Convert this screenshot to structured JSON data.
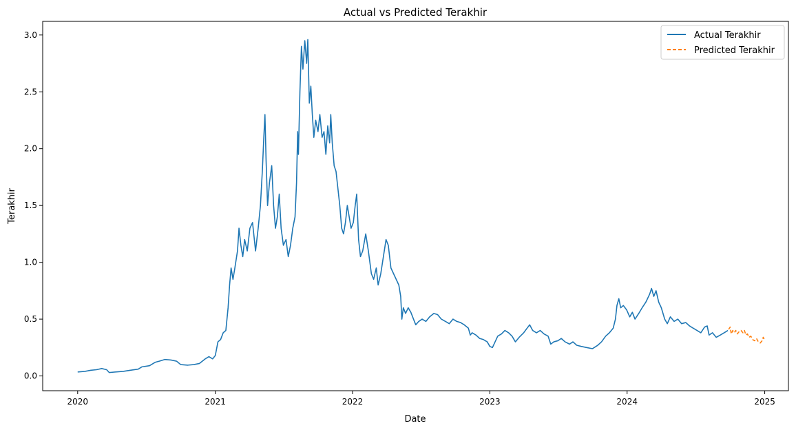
{
  "chart_data": {
    "type": "line",
    "title": "Actual vs Predicted Terakhir",
    "xlabel": "Date",
    "ylabel": "Terakhir",
    "xlim": [
      "2019-09-30",
      "2025-03-05"
    ],
    "ylim": [
      -0.13,
      3.12
    ],
    "x_ticks": [
      "2020",
      "2021",
      "2022",
      "2023",
      "2024",
      "2025"
    ],
    "y_ticks": [
      "0.0",
      "0.5",
      "1.0",
      "1.5",
      "2.0",
      "2.5",
      "3.0"
    ],
    "legend_position": "top-right",
    "grid": false,
    "series": [
      {
        "name": "Actual Terakhir",
        "color": "#1f77b4",
        "style": "solid",
        "points": [
          [
            "2020-01-01",
            0.035
          ],
          [
            "2020-01-20",
            0.04
          ],
          [
            "2020-02-05",
            0.05
          ],
          [
            "2020-02-20",
            0.055
          ],
          [
            "2020-03-05",
            0.065
          ],
          [
            "2020-03-18",
            0.055
          ],
          [
            "2020-03-25",
            0.03
          ],
          [
            "2020-04-10",
            0.035
          ],
          [
            "2020-05-01",
            0.04
          ],
          [
            "2020-05-20",
            0.05
          ],
          [
            "2020-06-10",
            0.06
          ],
          [
            "2020-06-20",
            0.08
          ],
          [
            "2020-07-10",
            0.09
          ],
          [
            "2020-07-25",
            0.12
          ],
          [
            "2020-08-05",
            0.13
          ],
          [
            "2020-08-20",
            0.145
          ],
          [
            "2020-09-05",
            0.14
          ],
          [
            "2020-09-20",
            0.13
          ],
          [
            "2020-10-01",
            0.1
          ],
          [
            "2020-10-20",
            0.095
          ],
          [
            "2020-11-05",
            0.1
          ],
          [
            "2020-11-20",
            0.11
          ],
          [
            "2020-12-05",
            0.15
          ],
          [
            "2020-12-15",
            0.17
          ],
          [
            "2020-12-25",
            0.15
          ],
          [
            "2021-01-01",
            0.18
          ],
          [
            "2021-01-08",
            0.3
          ],
          [
            "2021-01-15",
            0.32
          ],
          [
            "2021-01-22",
            0.38
          ],
          [
            "2021-01-29",
            0.4
          ],
          [
            "2021-02-04",
            0.6
          ],
          [
            "2021-02-08",
            0.8
          ],
          [
            "2021-02-12",
            0.95
          ],
          [
            "2021-02-17",
            0.85
          ],
          [
            "2021-02-22",
            0.95
          ],
          [
            "2021-03-01",
            1.1
          ],
          [
            "2021-03-05",
            1.3
          ],
          [
            "2021-03-10",
            1.15
          ],
          [
            "2021-03-15",
            1.05
          ],
          [
            "2021-03-20",
            1.2
          ],
          [
            "2021-03-27",
            1.1
          ],
          [
            "2021-04-03",
            1.3
          ],
          [
            "2021-04-10",
            1.35
          ],
          [
            "2021-04-18",
            1.1
          ],
          [
            "2021-04-25",
            1.3
          ],
          [
            "2021-05-01",
            1.5
          ],
          [
            "2021-05-06",
            1.8
          ],
          [
            "2021-05-10",
            2.1
          ],
          [
            "2021-05-13",
            2.3
          ],
          [
            "2021-05-16",
            1.9
          ],
          [
            "2021-05-20",
            1.5
          ],
          [
            "2021-05-25",
            1.7
          ],
          [
            "2021-05-31",
            1.85
          ],
          [
            "2021-06-05",
            1.5
          ],
          [
            "2021-06-10",
            1.3
          ],
          [
            "2021-06-15",
            1.4
          ],
          [
            "2021-06-20",
            1.6
          ],
          [
            "2021-06-25",
            1.3
          ],
          [
            "2021-07-01",
            1.15
          ],
          [
            "2021-07-08",
            1.2
          ],
          [
            "2021-07-14",
            1.05
          ],
          [
            "2021-07-20",
            1.15
          ],
          [
            "2021-07-26",
            1.3
          ],
          [
            "2021-08-01",
            1.4
          ],
          [
            "2021-08-05",
            1.7
          ],
          [
            "2021-08-08",
            2.15
          ],
          [
            "2021-08-10",
            1.95
          ],
          [
            "2021-08-14",
            2.5
          ],
          [
            "2021-08-18",
            2.9
          ],
          [
            "2021-08-22",
            2.7
          ],
          [
            "2021-08-27",
            2.95
          ],
          [
            "2021-09-01",
            2.75
          ],
          [
            "2021-09-04",
            2.96
          ],
          [
            "2021-09-08",
            2.4
          ],
          [
            "2021-09-12",
            2.55
          ],
          [
            "2021-09-16",
            2.3
          ],
          [
            "2021-09-20",
            2.1
          ],
          [
            "2021-09-25",
            2.25
          ],
          [
            "2021-10-01",
            2.15
          ],
          [
            "2021-10-06",
            2.3
          ],
          [
            "2021-10-12",
            2.1
          ],
          [
            "2021-10-17",
            2.15
          ],
          [
            "2021-10-22",
            1.95
          ],
          [
            "2021-10-27",
            2.2
          ],
          [
            "2021-11-01",
            2.05
          ],
          [
            "2021-11-04",
            2.3
          ],
          [
            "2021-11-08",
            2.05
          ],
          [
            "2021-11-13",
            1.85
          ],
          [
            "2021-11-18",
            1.8
          ],
          [
            "2021-11-23",
            1.65
          ],
          [
            "2021-11-28",
            1.5
          ],
          [
            "2021-12-03",
            1.3
          ],
          [
            "2021-12-08",
            1.25
          ],
          [
            "2021-12-13",
            1.35
          ],
          [
            "2021-12-18",
            1.5
          ],
          [
            "2021-12-23",
            1.4
          ],
          [
            "2021-12-28",
            1.3
          ],
          [
            "2022-01-03",
            1.35
          ],
          [
            "2022-01-08",
            1.5
          ],
          [
            "2022-01-12",
            1.6
          ],
          [
            "2022-01-17",
            1.2
          ],
          [
            "2022-01-22",
            1.05
          ],
          [
            "2022-01-28",
            1.1
          ],
          [
            "2022-02-05",
            1.25
          ],
          [
            "2022-02-12",
            1.1
          ],
          [
            "2022-02-20",
            0.9
          ],
          [
            "2022-02-26",
            0.85
          ],
          [
            "2022-03-05",
            0.95
          ],
          [
            "2022-03-10",
            0.8
          ],
          [
            "2022-03-17",
            0.9
          ],
          [
            "2022-03-24",
            1.05
          ],
          [
            "2022-03-31",
            1.2
          ],
          [
            "2022-04-06",
            1.15
          ],
          [
            "2022-04-13",
            0.95
          ],
          [
            "2022-04-20",
            0.9
          ],
          [
            "2022-04-27",
            0.85
          ],
          [
            "2022-05-04",
            0.8
          ],
          [
            "2022-05-09",
            0.7
          ],
          [
            "2022-05-12",
            0.5
          ],
          [
            "2022-05-16",
            0.6
          ],
          [
            "2022-05-22",
            0.55
          ],
          [
            "2022-05-29",
            0.6
          ],
          [
            "2022-06-05",
            0.56
          ],
          [
            "2022-06-12",
            0.5
          ],
          [
            "2022-06-18",
            0.45
          ],
          [
            "2022-06-26",
            0.48
          ],
          [
            "2022-07-05",
            0.5
          ],
          [
            "2022-07-15",
            0.48
          ],
          [
            "2022-07-25",
            0.52
          ],
          [
            "2022-08-05",
            0.55
          ],
          [
            "2022-08-15",
            0.54
          ],
          [
            "2022-08-25",
            0.5
          ],
          [
            "2022-09-05",
            0.48
          ],
          [
            "2022-09-15",
            0.46
          ],
          [
            "2022-09-25",
            0.5
          ],
          [
            "2022-10-05",
            0.48
          ],
          [
            "2022-10-15",
            0.47
          ],
          [
            "2022-10-25",
            0.45
          ],
          [
            "2022-11-05",
            0.42
          ],
          [
            "2022-11-10",
            0.36
          ],
          [
            "2022-11-15",
            0.38
          ],
          [
            "2022-11-25",
            0.36
          ],
          [
            "2022-12-05",
            0.33
          ],
          [
            "2022-12-15",
            0.32
          ],
          [
            "2022-12-25",
            0.3
          ],
          [
            "2023-01-01",
            0.26
          ],
          [
            "2023-01-08",
            0.25
          ],
          [
            "2023-01-15",
            0.3
          ],
          [
            "2023-01-22",
            0.35
          ],
          [
            "2023-02-01",
            0.37
          ],
          [
            "2023-02-10",
            0.4
          ],
          [
            "2023-02-20",
            0.38
          ],
          [
            "2023-03-01",
            0.35
          ],
          [
            "2023-03-10",
            0.3
          ],
          [
            "2023-03-20",
            0.34
          ],
          [
            "2023-04-01",
            0.38
          ],
          [
            "2023-04-10",
            0.42
          ],
          [
            "2023-04-17",
            0.45
          ],
          [
            "2023-04-25",
            0.4
          ],
          [
            "2023-05-05",
            0.38
          ],
          [
            "2023-05-15",
            0.4
          ],
          [
            "2023-05-25",
            0.37
          ],
          [
            "2023-06-05",
            0.35
          ],
          [
            "2023-06-12",
            0.28
          ],
          [
            "2023-06-20",
            0.3
          ],
          [
            "2023-07-01",
            0.31
          ],
          [
            "2023-07-10",
            0.33
          ],
          [
            "2023-07-20",
            0.3
          ],
          [
            "2023-08-01",
            0.28
          ],
          [
            "2023-08-10",
            0.3
          ],
          [
            "2023-08-20",
            0.27
          ],
          [
            "2023-09-01",
            0.26
          ],
          [
            "2023-09-15",
            0.25
          ],
          [
            "2023-10-01",
            0.24
          ],
          [
            "2023-10-15",
            0.27
          ],
          [
            "2023-10-25",
            0.3
          ],
          [
            "2023-11-05",
            0.35
          ],
          [
            "2023-11-15",
            0.38
          ],
          [
            "2023-11-25",
            0.42
          ],
          [
            "2023-12-01",
            0.5
          ],
          [
            "2023-12-05",
            0.62
          ],
          [
            "2023-12-10",
            0.68
          ],
          [
            "2023-12-15",
            0.6
          ],
          [
            "2023-12-22",
            0.62
          ],
          [
            "2023-12-31",
            0.58
          ],
          [
            "2024-01-08",
            0.52
          ],
          [
            "2024-01-15",
            0.56
          ],
          [
            "2024-01-22",
            0.5
          ],
          [
            "2024-02-01",
            0.55
          ],
          [
            "2024-02-10",
            0.6
          ],
          [
            "2024-02-20",
            0.65
          ],
          [
            "2024-03-01",
            0.72
          ],
          [
            "2024-03-06",
            0.77
          ],
          [
            "2024-03-12",
            0.7
          ],
          [
            "2024-03-18",
            0.75
          ],
          [
            "2024-03-25",
            0.65
          ],
          [
            "2024-04-01",
            0.6
          ],
          [
            "2024-04-10",
            0.5
          ],
          [
            "2024-04-17",
            0.46
          ],
          [
            "2024-04-25",
            0.52
          ],
          [
            "2024-05-05",
            0.48
          ],
          [
            "2024-05-15",
            0.5
          ],
          [
            "2024-05-25",
            0.46
          ],
          [
            "2024-06-05",
            0.47
          ],
          [
            "2024-06-15",
            0.44
          ],
          [
            "2024-06-25",
            0.42
          ],
          [
            "2024-07-05",
            0.4
          ],
          [
            "2024-07-15",
            0.38
          ],
          [
            "2024-07-25",
            0.43
          ],
          [
            "2024-08-01",
            0.44
          ],
          [
            "2024-08-06",
            0.36
          ],
          [
            "2024-08-15",
            0.38
          ],
          [
            "2024-08-25",
            0.34
          ],
          [
            "2024-09-05",
            0.36
          ],
          [
            "2024-09-15",
            0.38
          ],
          [
            "2024-09-25",
            0.4
          ]
        ]
      },
      {
        "name": "Predicted Terakhir",
        "color": "#ff7f0e",
        "style": "dashed",
        "points": [
          [
            "2024-09-27",
            0.41
          ],
          [
            "2024-10-01",
            0.43
          ],
          [
            "2024-10-04",
            0.37
          ],
          [
            "2024-10-08",
            0.4
          ],
          [
            "2024-10-12",
            0.38
          ],
          [
            "2024-10-16",
            0.4
          ],
          [
            "2024-10-20",
            0.37
          ],
          [
            "2024-10-25",
            0.39
          ],
          [
            "2024-10-30",
            0.4
          ],
          [
            "2024-11-04",
            0.38
          ],
          [
            "2024-11-08",
            0.4
          ],
          [
            "2024-11-12",
            0.36
          ],
          [
            "2024-11-16",
            0.37
          ],
          [
            "2024-11-20",
            0.34
          ],
          [
            "2024-11-25",
            0.35
          ],
          [
            "2024-11-30",
            0.32
          ],
          [
            "2024-12-05",
            0.31
          ],
          [
            "2024-12-10",
            0.33
          ],
          [
            "2024-12-15",
            0.3
          ],
          [
            "2024-12-20",
            0.29
          ],
          [
            "2024-12-25",
            0.31
          ],
          [
            "2024-12-28",
            0.34
          ],
          [
            "2024-12-31",
            0.32
          ]
        ]
      }
    ]
  }
}
